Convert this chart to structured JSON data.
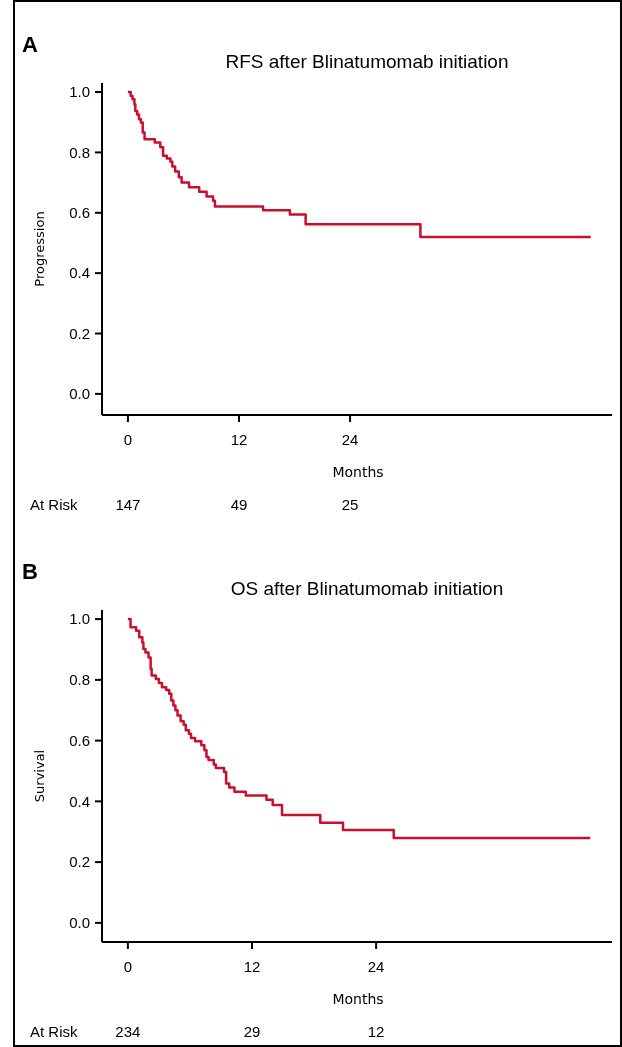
{
  "chart_data": [
    {
      "type": "step",
      "title": "RFS after Blinatumomab initiation",
      "xlabel": "Months",
      "ylabel": "Progression",
      "xlim": [
        -2.8,
        52.3
      ],
      "xticks": [
        0,
        12,
        24
      ],
      "ylim": [
        -0.07,
        1.03
      ],
      "yticks": [
        {
          "value": 0,
          "label": "0.0"
        },
        {
          "value": 0.2,
          "label": "0.2"
        },
        {
          "value": 0.4,
          "label": "0.4"
        },
        {
          "value": 0.6,
          "label": "0.6"
        },
        {
          "value": 0.8,
          "label": "0.8"
        },
        {
          "value": 1,
          "label": "1.0"
        }
      ],
      "grid": false,
      "line_style": "solid",
      "series": [
        {
          "color": "#c8102e",
          "x": [
            0,
            0.3,
            0.5,
            0.7,
            0.8,
            1.0,
            1.2,
            1.4,
            1.6,
            1.8,
            2.9,
            3.5,
            3.8,
            4.2,
            4.6,
            4.8,
            5.1,
            5.5,
            5.8,
            6.6,
            7.7,
            8.5,
            9.2,
            9.4,
            14.6,
            17.5,
            19.2,
            31.6,
            50
          ],
          "values": [
            1.0,
            0.987,
            0.976,
            0.96,
            0.937,
            0.926,
            0.91,
            0.899,
            0.866,
            0.844,
            0.833,
            0.817,
            0.789,
            0.78,
            0.769,
            0.753,
            0.737,
            0.718,
            0.7,
            0.685,
            0.67,
            0.654,
            0.64,
            0.621,
            0.608,
            0.594,
            0.562,
            0.52,
            0.52
          ]
        }
      ],
      "annotations": [
        "A",
        "At Risk",
        "147",
        "49",
        "25"
      ]
    },
    {
      "type": "step",
      "title": "OS after Blinatumomab initiation",
      "xlabel": "Months",
      "ylabel": "Survival",
      "xlim": [
        -2.5,
        46.8
      ],
      "xticks": [
        0,
        12,
        24
      ],
      "ylim": [
        -0.063,
        1.03
      ],
      "yticks": [
        {
          "value": 0,
          "label": "0.0"
        },
        {
          "value": 0.2,
          "label": "0.2"
        },
        {
          "value": 0.4,
          "label": "0.4"
        },
        {
          "value": 0.6,
          "label": "0.6"
        },
        {
          "value": 0.8,
          "label": "0.8"
        },
        {
          "value": 1,
          "label": "1.0"
        }
      ],
      "grid": false,
      "line_style": "solid",
      "series": [
        {
          "color": "#c8102e",
          "x": [
            0,
            0.26,
            0.8,
            1.1,
            1.4,
            1.5,
            1.7,
            2.0,
            2.2,
            2.3,
            2.7,
            3.0,
            3.3,
            3.7,
            4.0,
            4.2,
            4.4,
            4.6,
            4.8,
            5.1,
            5.4,
            5.6,
            5.9,
            6.1,
            6.5,
            7.1,
            7.4,
            7.6,
            7.8,
            8.3,
            8.5,
            9.3,
            9.5,
            9.8,
            10.3,
            11.4,
            13.4,
            14.0,
            14.9,
            18.6,
            20.8,
            25.7,
            44.7
          ],
          "values": [
            1.0,
            0.973,
            0.962,
            0.94,
            0.923,
            0.902,
            0.89,
            0.874,
            0.836,
            0.814,
            0.803,
            0.79,
            0.776,
            0.767,
            0.754,
            0.732,
            0.716,
            0.7,
            0.683,
            0.664,
            0.652,
            0.634,
            0.623,
            0.609,
            0.598,
            0.585,
            0.568,
            0.546,
            0.536,
            0.521,
            0.51,
            0.497,
            0.459,
            0.446,
            0.432,
            0.419,
            0.405,
            0.388,
            0.355,
            0.33,
            0.306,
            0.279,
            0.279
          ]
        }
      ],
      "annotations": [
        "B",
        "At Risk",
        "234",
        "29",
        "12"
      ]
    }
  ]
}
